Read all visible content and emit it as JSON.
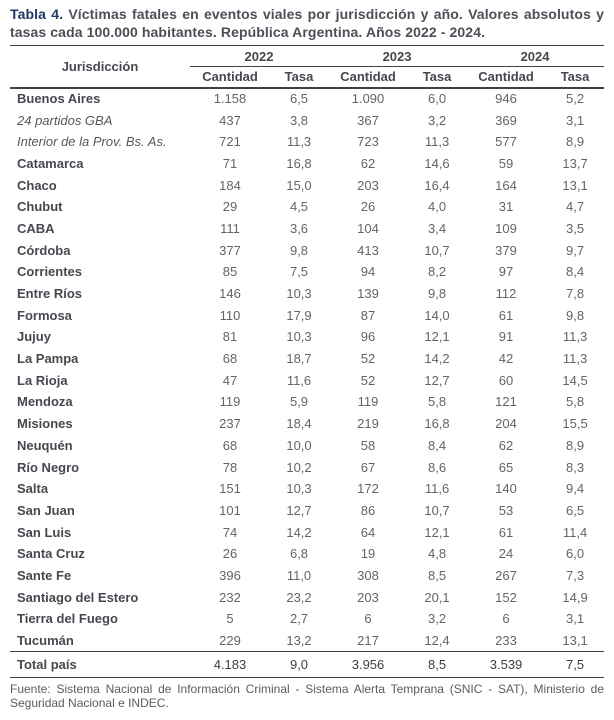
{
  "title": {
    "label": "Tabla 4.",
    "text": "Víctimas fatales en eventos viales por jurisdicción y año. Valores absolutos y tasas cada 100.000 habitantes. República Argentina. Años 2022 - 2024."
  },
  "table": {
    "jurisdiction_header": "Jurisdicción",
    "year_groups": [
      "2022",
      "2023",
      "2024"
    ],
    "sub_headers": [
      "Cantidad",
      "Tasa"
    ],
    "rows": [
      {
        "name": "Buenos Aires",
        "style": "bold",
        "values": [
          "1.158",
          "6,5",
          "1.090",
          "6,0",
          "946",
          "5,2"
        ]
      },
      {
        "name": "24 partidos GBA",
        "style": "italic",
        "values": [
          "437",
          "3,8",
          "367",
          "3,2",
          "369",
          "3,1"
        ]
      },
      {
        "name": "Interior de la Prov. Bs. As.",
        "style": "italic",
        "values": [
          "721",
          "11,3",
          "723",
          "11,3",
          "577",
          "8,9"
        ]
      },
      {
        "name": "Catamarca",
        "style": "bold",
        "values": [
          "71",
          "16,8",
          "62",
          "14,6",
          "59",
          "13,7"
        ]
      },
      {
        "name": "Chaco",
        "style": "bold",
        "values": [
          "184",
          "15,0",
          "203",
          "16,4",
          "164",
          "13,1"
        ]
      },
      {
        "name": "Chubut",
        "style": "bold",
        "values": [
          "29",
          "4,5",
          "26",
          "4,0",
          "31",
          "4,7"
        ]
      },
      {
        "name": "CABA",
        "style": "bold",
        "values": [
          "111",
          "3,6",
          "104",
          "3,4",
          "109",
          "3,5"
        ]
      },
      {
        "name": "Córdoba",
        "style": "bold",
        "values": [
          "377",
          "9,8",
          "413",
          "10,7",
          "379",
          "9,7"
        ]
      },
      {
        "name": "Corrientes",
        "style": "bold",
        "values": [
          "85",
          "7,5",
          "94",
          "8,2",
          "97",
          "8,4"
        ]
      },
      {
        "name": "Entre Ríos",
        "style": "bold",
        "values": [
          "146",
          "10,3",
          "139",
          "9,8",
          "112",
          "7,8"
        ]
      },
      {
        "name": "Formosa",
        "style": "bold",
        "values": [
          "110",
          "17,9",
          "87",
          "14,0",
          "61",
          "9,8"
        ]
      },
      {
        "name": "Jujuy",
        "style": "bold",
        "values": [
          "81",
          "10,3",
          "96",
          "12,1",
          "91",
          "11,3"
        ]
      },
      {
        "name": "La Pampa",
        "style": "bold",
        "values": [
          "68",
          "18,7",
          "52",
          "14,2",
          "42",
          "11,3"
        ]
      },
      {
        "name": "La Rioja",
        "style": "bold",
        "values": [
          "47",
          "11,6",
          "52",
          "12,7",
          "60",
          "14,5"
        ]
      },
      {
        "name": "Mendoza",
        "style": "bold",
        "values": [
          "119",
          "5,9",
          "119",
          "5,8",
          "121",
          "5,8"
        ]
      },
      {
        "name": "Misiones",
        "style": "bold",
        "values": [
          "237",
          "18,4",
          "219",
          "16,8",
          "204",
          "15,5"
        ]
      },
      {
        "name": "Neuquén",
        "style": "bold",
        "values": [
          "68",
          "10,0",
          "58",
          "8,4",
          "62",
          "8,9"
        ]
      },
      {
        "name": "Río Negro",
        "style": "bold",
        "values": [
          "78",
          "10,2",
          "67",
          "8,6",
          "65",
          "8,3"
        ]
      },
      {
        "name": "Salta",
        "style": "bold",
        "values": [
          "151",
          "10,3",
          "172",
          "11,6",
          "140",
          "9,4"
        ]
      },
      {
        "name": "San Juan",
        "style": "bold",
        "values": [
          "101",
          "12,7",
          "86",
          "10,7",
          "53",
          "6,5"
        ]
      },
      {
        "name": "San Luis",
        "style": "bold",
        "values": [
          "74",
          "14,2",
          "64",
          "12,1",
          "61",
          "11,4"
        ]
      },
      {
        "name": "Santa Cruz",
        "style": "bold",
        "values": [
          "26",
          "6,8",
          "19",
          "4,8",
          "24",
          "6,0"
        ]
      },
      {
        "name": "Sante Fe",
        "style": "bold",
        "values": [
          "396",
          "11,0",
          "308",
          "8,5",
          "267",
          "7,3"
        ]
      },
      {
        "name": "Santiago del Estero",
        "style": "bold",
        "values": [
          "232",
          "23,2",
          "203",
          "20,1",
          "152",
          "14,9"
        ]
      },
      {
        "name": "Tierra del Fuego",
        "style": "bold",
        "values": [
          "5",
          "2,7",
          "6",
          "3,2",
          "6",
          "3,1"
        ]
      },
      {
        "name": "Tucumán",
        "style": "bold",
        "values": [
          "229",
          "13,2",
          "217",
          "12,4",
          "233",
          "13,1"
        ]
      }
    ],
    "total_row": {
      "name": "Total país",
      "values": [
        "4.183",
        "9,0",
        "3.956",
        "8,5",
        "3.539",
        "7,5"
      ]
    }
  },
  "footer": {
    "source": "Fuente: Sistema Nacional de Información Criminal - Sistema Alerta Temprana (SNIC - SAT), Ministerio de Seguridad Nacional e INDEC."
  },
  "colors": {
    "accent_navy": "#203864",
    "title_text": "#4c4f58",
    "header_text": "#45484f",
    "body_number": "#616469",
    "rule_dark": "#3d4046",
    "background": "#ffffff"
  },
  "chart_data": {
    "type": "table",
    "title": "Tabla 4. Víctimas fatales en eventos viales por jurisdicción y año. Valores absolutos y tasas cada 100.000 habitantes. República Argentina. Años 2022 - 2024.",
    "columns": [
      "Jurisdicción",
      "2022 Cantidad",
      "2022 Tasa",
      "2023 Cantidad",
      "2023 Tasa",
      "2024 Cantidad",
      "2024 Tasa"
    ],
    "rows": [
      [
        "Buenos Aires",
        1158,
        6.5,
        1090,
        6.0,
        946,
        5.2
      ],
      [
        "24 partidos GBA",
        437,
        3.8,
        367,
        3.2,
        369,
        3.1
      ],
      [
        "Interior de la Prov. Bs. As.",
        721,
        11.3,
        723,
        11.3,
        577,
        8.9
      ],
      [
        "Catamarca",
        71,
        16.8,
        62,
        14.6,
        59,
        13.7
      ],
      [
        "Chaco",
        184,
        15.0,
        203,
        16.4,
        164,
        13.1
      ],
      [
        "Chubut",
        29,
        4.5,
        26,
        4.0,
        31,
        4.7
      ],
      [
        "CABA",
        111,
        3.6,
        104,
        3.4,
        109,
        3.5
      ],
      [
        "Córdoba",
        377,
        9.8,
        413,
        10.7,
        379,
        9.7
      ],
      [
        "Corrientes",
        85,
        7.5,
        94,
        8.2,
        97,
        8.4
      ],
      [
        "Entre Ríos",
        146,
        10.3,
        139,
        9.8,
        112,
        7.8
      ],
      [
        "Formosa",
        110,
        17.9,
        87,
        14.0,
        61,
        9.8
      ],
      [
        "Jujuy",
        81,
        10.3,
        96,
        12.1,
        91,
        11.3
      ],
      [
        "La Pampa",
        68,
        18.7,
        52,
        14.2,
        42,
        11.3
      ],
      [
        "La Rioja",
        47,
        11.6,
        52,
        12.7,
        60,
        14.5
      ],
      [
        "Mendoza",
        119,
        5.9,
        119,
        5.8,
        121,
        5.8
      ],
      [
        "Misiones",
        237,
        18.4,
        219,
        16.8,
        204,
        15.5
      ],
      [
        "Neuquén",
        68,
        10.0,
        58,
        8.4,
        62,
        8.9
      ],
      [
        "Río Negro",
        78,
        10.2,
        67,
        8.6,
        65,
        8.3
      ],
      [
        "Salta",
        151,
        10.3,
        172,
        11.6,
        140,
        9.4
      ],
      [
        "San Juan",
        101,
        12.7,
        86,
        10.7,
        53,
        6.5
      ],
      [
        "San Luis",
        74,
        14.2,
        64,
        12.1,
        61,
        11.4
      ],
      [
        "Santa Cruz",
        26,
        6.8,
        19,
        4.8,
        24,
        6.0
      ],
      [
        "Sante Fe",
        396,
        11.0,
        308,
        8.5,
        267,
        7.3
      ],
      [
        "Santiago del Estero",
        232,
        23.2,
        203,
        20.1,
        152,
        14.9
      ],
      [
        "Tierra del Fuego",
        5,
        2.7,
        6,
        3.2,
        6,
        3.1
      ],
      [
        "Tucumán",
        229,
        13.2,
        217,
        12.4,
        233,
        13.1
      ],
      [
        "Total país",
        4183,
        9.0,
        3956,
        8.5,
        3539,
        7.5
      ]
    ]
  }
}
